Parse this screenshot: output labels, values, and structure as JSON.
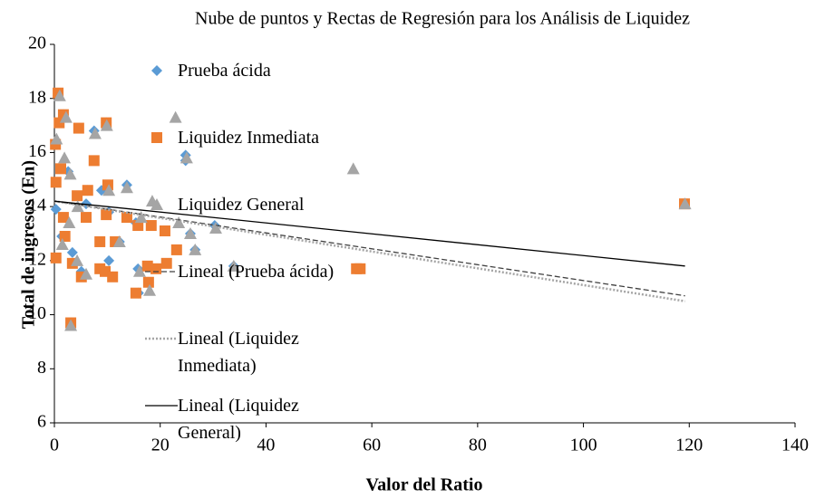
{
  "chart_data": {
    "type": "scatter",
    "title": "Nube de puntos y Rectas de Regresión para los Análisis de Liquidez",
    "x_label": "Valor del Ratio",
    "y_label": "Total de ingresos (En)",
    "xlim": [
      0,
      140
    ],
    "xticks": [
      0,
      20,
      40,
      60,
      80,
      100,
      120,
      140
    ],
    "ylim": [
      6,
      20
    ],
    "yticks": [
      6,
      8,
      10,
      12,
      14,
      16,
      18,
      20
    ],
    "grid": false,
    "legend": "inside-left",
    "series": [
      {
        "name": "Prueba ácida",
        "color": "#5b9bd5",
        "marker": "diamond",
        "x": [
          0.7,
          1.7,
          7.5,
          9.8,
          13.7,
          24.8,
          24.8,
          6.0,
          10.3,
          15.4,
          25.7,
          30.3,
          26.6,
          12.3,
          10.3,
          15.8,
          33.9,
          17.8,
          15.9,
          5.1,
          3.1,
          3.4,
          1.4,
          2.6,
          0.3,
          6.3,
          8.9,
          119.1
        ],
        "values": [
          18.1,
          17.4,
          16.8,
          17.1,
          14.8,
          15.9,
          15.7,
          14.1,
          13.8,
          13.4,
          13.0,
          13.3,
          12.4,
          12.7,
          12.0,
          11.7,
          11.8,
          11.2,
          10.8,
          11.6,
          9.7,
          12.3,
          12.9,
          15.3,
          13.9,
          14.6,
          14.6,
          14.1
        ]
      },
      {
        "name": "Liquidez Inmediata",
        "color": "#ed7d31",
        "marker": "square",
        "x": [
          0.7,
          0.9,
          1.7,
          4.6,
          9.8,
          7.5,
          10.1,
          6.3,
          0.3,
          1.7,
          6.0,
          9.8,
          13.7,
          15.8,
          18.3,
          20.9,
          8.6,
          11.5,
          8.6,
          17.6,
          21.2,
          23.1,
          19.2,
          9.6,
          15.4,
          17.8,
          11.0,
          5.1,
          3.4,
          3.1,
          57.1,
          57.8,
          119.1,
          0.2,
          0.3,
          2.0,
          4.3,
          1.2
        ],
        "values": [
          18.2,
          17.1,
          17.4,
          16.9,
          17.1,
          15.7,
          14.8,
          14.6,
          14.9,
          13.6,
          13.6,
          13.7,
          13.6,
          13.3,
          13.3,
          13.1,
          12.7,
          12.7,
          11.7,
          11.8,
          11.9,
          12.4,
          11.7,
          11.6,
          10.8,
          11.2,
          11.4,
          11.4,
          11.9,
          9.7,
          11.7,
          11.7,
          14.1,
          16.3,
          12.1,
          12.9,
          14.4,
          15.4
        ]
      },
      {
        "name": "Liquidez General",
        "color": "#a5a5a5",
        "marker": "triangle",
        "x": [
          1.0,
          2.2,
          7.7,
          9.9,
          22.9,
          25.0,
          56.5,
          18.5,
          13.7,
          10.3,
          16.4,
          23.5,
          25.7,
          26.6,
          30.5,
          12.3,
          16.1,
          18.0,
          4.3,
          6.0,
          3.1,
          1.5,
          2.8,
          0.4,
          1.9,
          3.0,
          4.4,
          33.9,
          119.2
        ],
        "values": [
          18.1,
          17.3,
          16.7,
          17.0,
          17.3,
          15.8,
          15.4,
          14.2,
          14.7,
          14.6,
          13.6,
          13.4,
          13.0,
          12.4,
          13.2,
          12.7,
          11.6,
          10.9,
          12.0,
          11.5,
          9.6,
          12.6,
          13.4,
          16.5,
          15.8,
          15.2,
          14.0,
          11.8,
          14.1
        ]
      }
    ],
    "trendlines": [
      {
        "name": "Lineal (Prueba ácida)",
        "color": "#404040",
        "dash": "dashed",
        "x": [
          0,
          119.2
        ],
        "values": [
          14.2,
          10.7
        ]
      },
      {
        "name": "Lineal (Liquidez Inmediata)",
        "color": "#a5a5a5",
        "dash": "dotted",
        "x": [
          0,
          119.2
        ],
        "values": [
          14.2,
          10.5
        ]
      },
      {
        "name": "Lineal (Liquidez General)",
        "color": "#000000",
        "dash": "solid",
        "x": [
          0,
          119.2
        ],
        "values": [
          14.2,
          11.8
        ]
      }
    ]
  }
}
